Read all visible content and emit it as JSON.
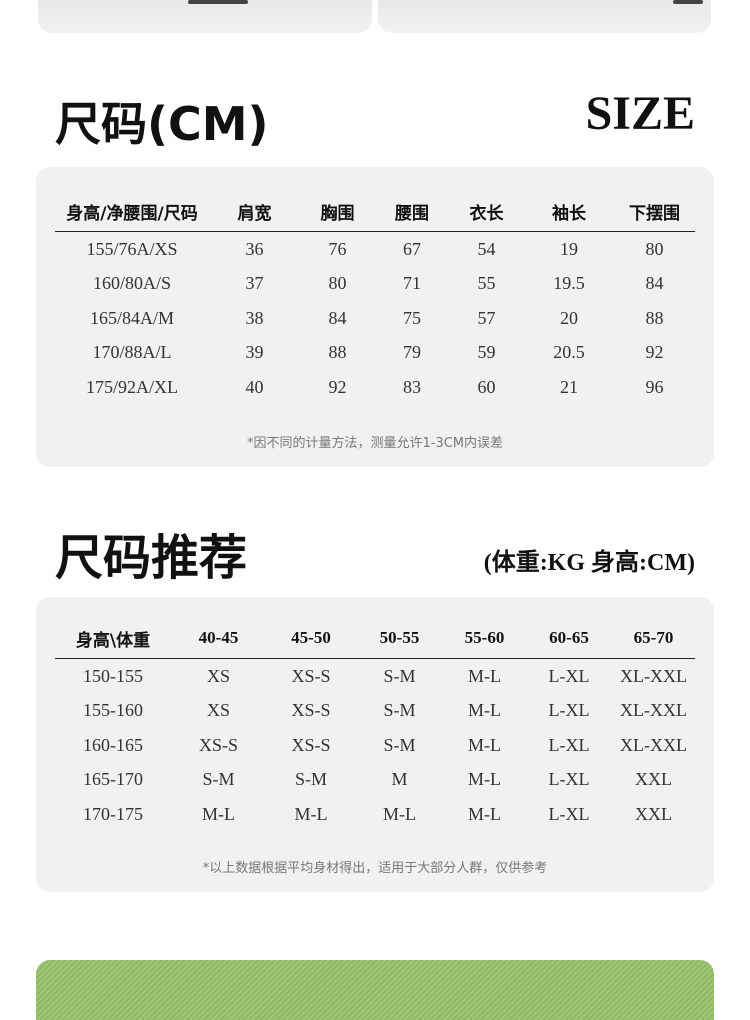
{
  "size_section": {
    "title": "尺码(CM)",
    "title_right": "SIZE",
    "headers": [
      "身高/净腰围/尺码",
      "肩宽",
      "胸围",
      "腰围",
      "衣长",
      "袖长",
      "下摆围"
    ],
    "rows": [
      [
        "155/76A/XS",
        "36",
        "76",
        "67",
        "54",
        "19",
        "80"
      ],
      [
        "160/80A/S",
        "37",
        "80",
        "71",
        "55",
        "19.5",
        "84"
      ],
      [
        "165/84A/M",
        "38",
        "84",
        "75",
        "57",
        "20",
        "88"
      ],
      [
        "170/88A/L",
        "39",
        "88",
        "79",
        "59",
        "20.5",
        "92"
      ],
      [
        "175/92A/XL",
        "40",
        "92",
        "83",
        "60",
        "21",
        "96"
      ]
    ],
    "note": "*因不同的计量方法，测量允许1-3CM内误差"
  },
  "recommend_section": {
    "title": "尺码推荐",
    "title_right": "(体重:KG 身高:CM)",
    "headers": [
      "身高\\体重",
      "40-45",
      "45-50",
      "50-55",
      "55-60",
      "60-65",
      "65-70"
    ],
    "rows": [
      [
        "150-155",
        "XS",
        "XS-S",
        "S-M",
        "M-L",
        "L-XL",
        "XL-XXL"
      ],
      [
        "155-160",
        "XS",
        "XS-S",
        "S-M",
        "M-L",
        "L-XL",
        "XL-XXL"
      ],
      [
        "160-165",
        "XS-S",
        "XS-S",
        "S-M",
        "M-L",
        "L-XL",
        "XL-XXL"
      ],
      [
        "165-170",
        "S-M",
        "S-M",
        "M",
        "M-L",
        "L-XL",
        "XXL"
      ],
      [
        "170-175",
        "M-L",
        "M-L",
        "M-L",
        "M-L",
        "L-XL",
        "XXL"
      ]
    ],
    "note": "*以上数据根据平均身材得出，适用于大部分人群，仅供参考"
  }
}
